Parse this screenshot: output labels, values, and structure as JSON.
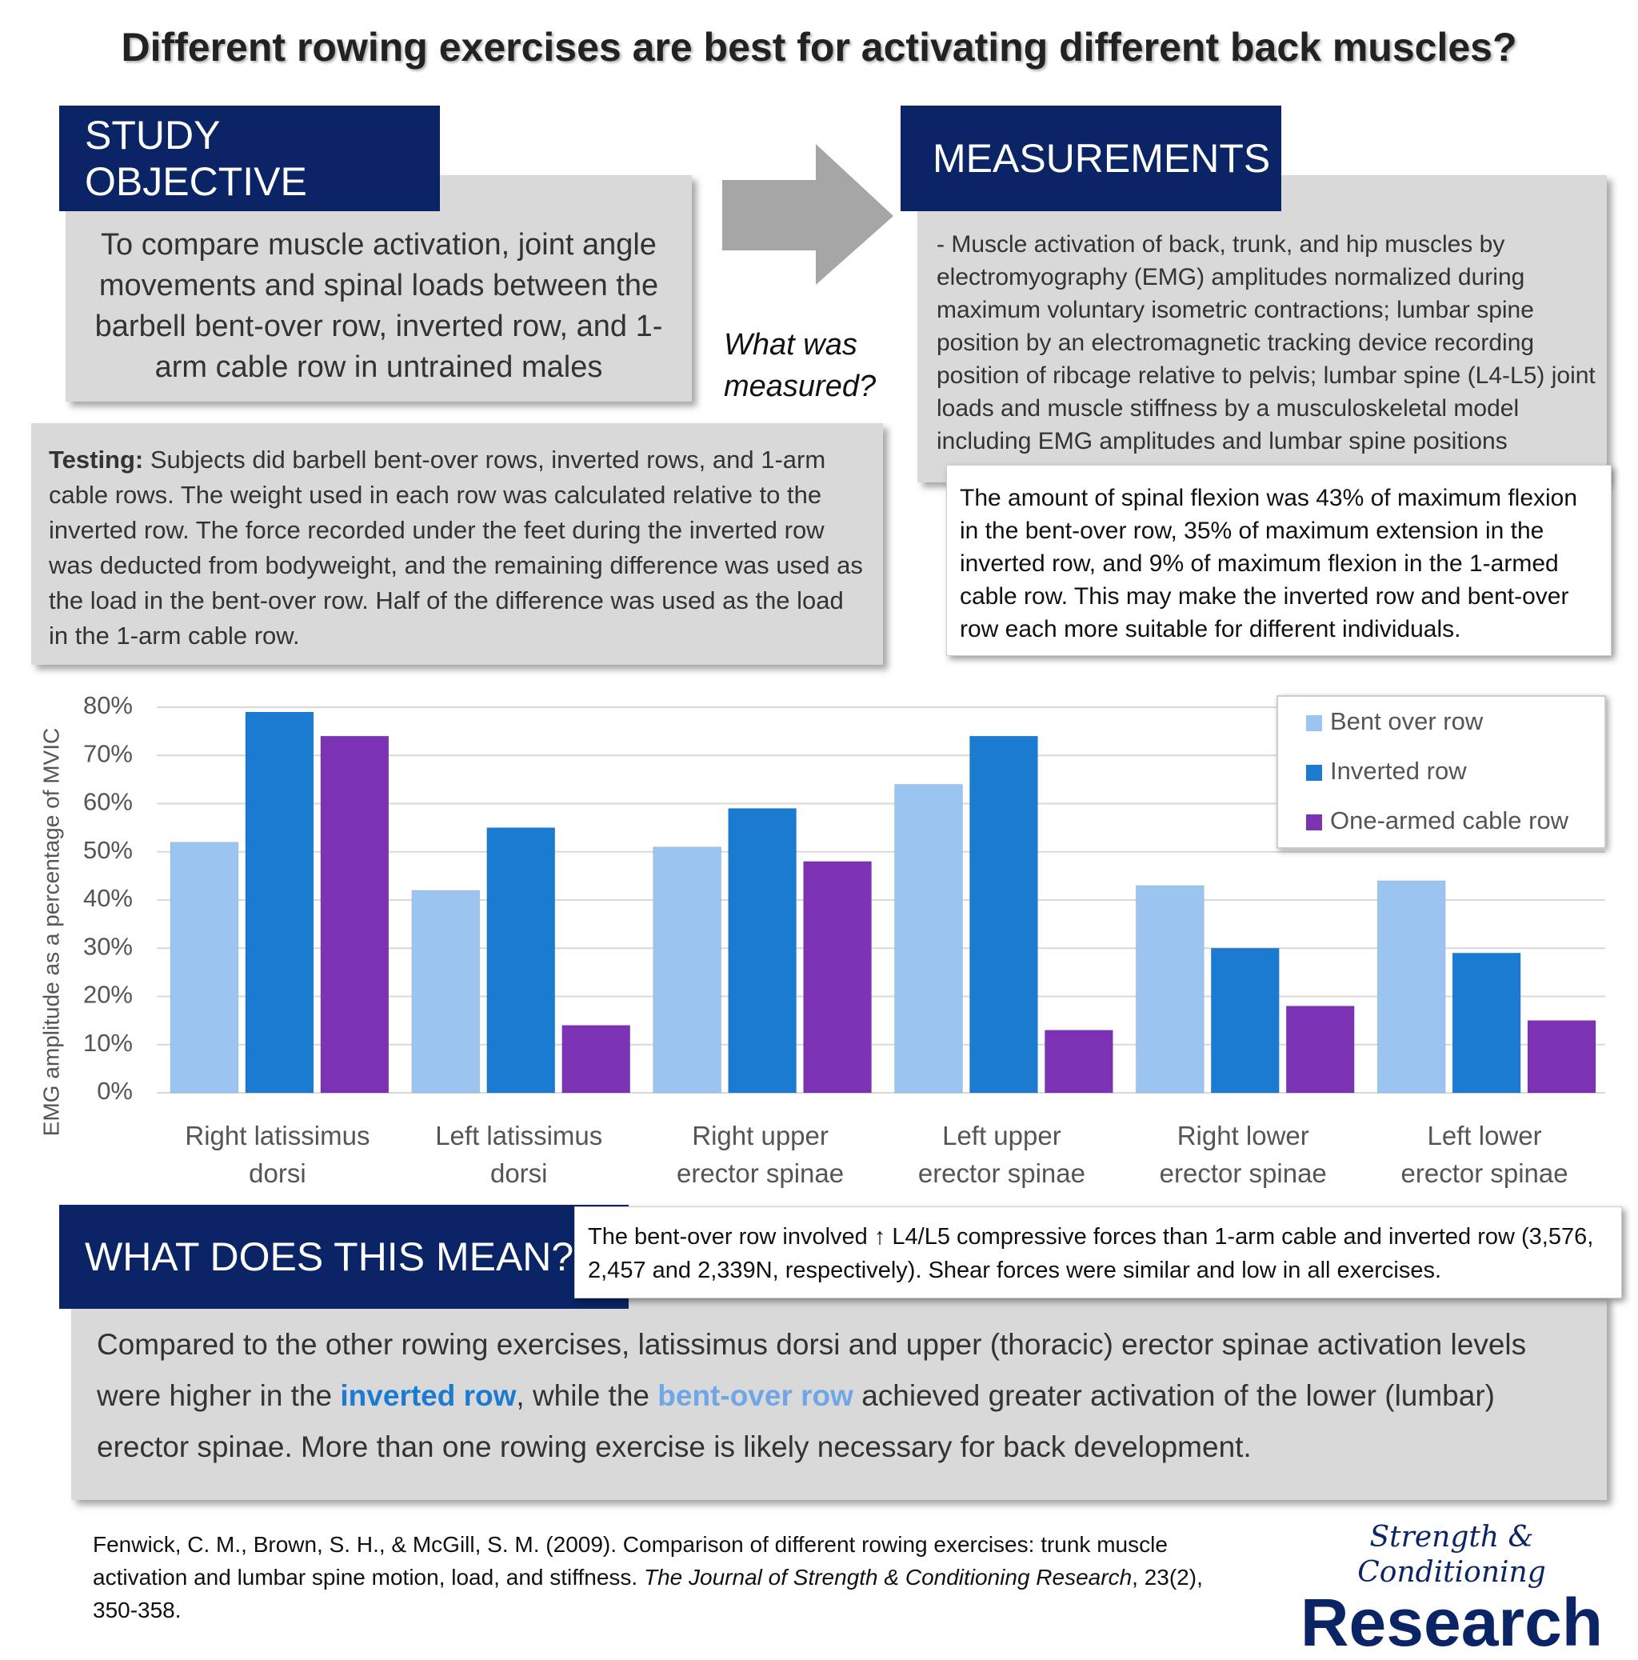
{
  "title": "Different rowing exercises are best for activating different back muscles?",
  "study_objective": {
    "heading": "STUDY OBJECTIVE",
    "text": "To compare muscle activation, joint angle movements and spinal loads between the barbell bent-over row, inverted row, and 1-arm cable row in untrained males"
  },
  "arrow_label": "What was measured?",
  "measurements": {
    "heading": "MEASUREMENTS",
    "text": "- Muscle activation of back, trunk, and hip muscles by electromyography (EMG) amplitudes normalized during maximum voluntary isometric contractions; lumbar spine position by an electromagnetic tracking device recording position of ribcage relative to pelvis; lumbar spine (L4-L5) joint loads and muscle stiffness by a musculoskeletal model including EMG amplitudes and lumbar spine positions"
  },
  "testing": {
    "label": "Testing:",
    "text": "Subjects did barbell bent-over rows, inverted rows, and 1-arm cable rows. The weight used in each row was calculated relative to the inverted row. The force recorded under the feet during the inverted row was deducted from bodyweight, and the remaining difference was used as the load in the bent-over row. Half of the difference was used as the load in the 1-arm cable row."
  },
  "flexion_note": "The amount of spinal flexion was 43% of maximum flexion in the bent-over row, 35% of maximum extension in the inverted row, and 9% of maximum flexion in the 1-armed cable row. This may make the inverted row and bent-over row each more suitable for different individuals.",
  "chart_data": {
    "type": "bar",
    "y_label": "EMG amplitude as a percentage of MVIC",
    "categories": [
      "Right latissimus dorsi",
      "Left latissimus dorsi",
      "Right upper erector spinae",
      "Left upper erector spinae",
      "Right lower erector spinae",
      "Left lower erector spinae"
    ],
    "series": [
      {
        "name": "Bent over row",
        "color": "#9cc4f0",
        "values": [
          52,
          42,
          51,
          64,
          43,
          44
        ]
      },
      {
        "name": "Inverted row",
        "color": "#1b7bd1",
        "values": [
          79,
          55,
          59,
          74,
          30,
          29
        ]
      },
      {
        "name": "One-armed cable row",
        "color": "#7b33b3",
        "values": [
          74,
          14,
          48,
          13,
          18,
          15
        ]
      }
    ],
    "ylim": [
      0,
      80
    ],
    "yticks": [
      {
        "value": 0,
        "label": "0%"
      },
      {
        "value": 10,
        "label": "10%"
      },
      {
        "value": 20,
        "label": "20%"
      },
      {
        "value": 30,
        "label": "30%"
      },
      {
        "value": 40,
        "label": "40%"
      },
      {
        "value": 50,
        "label": "50%"
      },
      {
        "value": 60,
        "label": "60%"
      },
      {
        "value": 70,
        "label": "70%"
      },
      {
        "value": 80,
        "label": "80%"
      }
    ],
    "grid": true,
    "legend": "top-right"
  },
  "meaning": {
    "heading": "WHAT DOES THIS MEAN?",
    "note": "The bent-over row involved ↑ L4/L5 compressive forces than 1-arm cable and inverted row (3,576, 2,457 and 2,339N, respectively). Shear forces were similar and low in all exercises.",
    "text": [
      "Compared to the other rowing exercises, latissimus dorsi and upper (thoracic) erector spinae activation levels were higher in the ",
      "inverted row",
      ", while the ",
      "bent-over row",
      " achieved greater activation of the lower (lumbar) erector spinae. More than one rowing exercise is likely necessary for back development."
    ]
  },
  "citation": [
    "Fenwick, C. M., Brown, S. H., & McGill, S. M. (2009). Comparison of different rowing exercises: trunk muscle activation and lumbar spine motion, load, and stiffness. ",
    "The Journal of Strength & Conditioning Research",
    ", 23(2), 350-358."
  ],
  "logo": {
    "script": "Strength & Conditioning",
    "name": "Research"
  }
}
